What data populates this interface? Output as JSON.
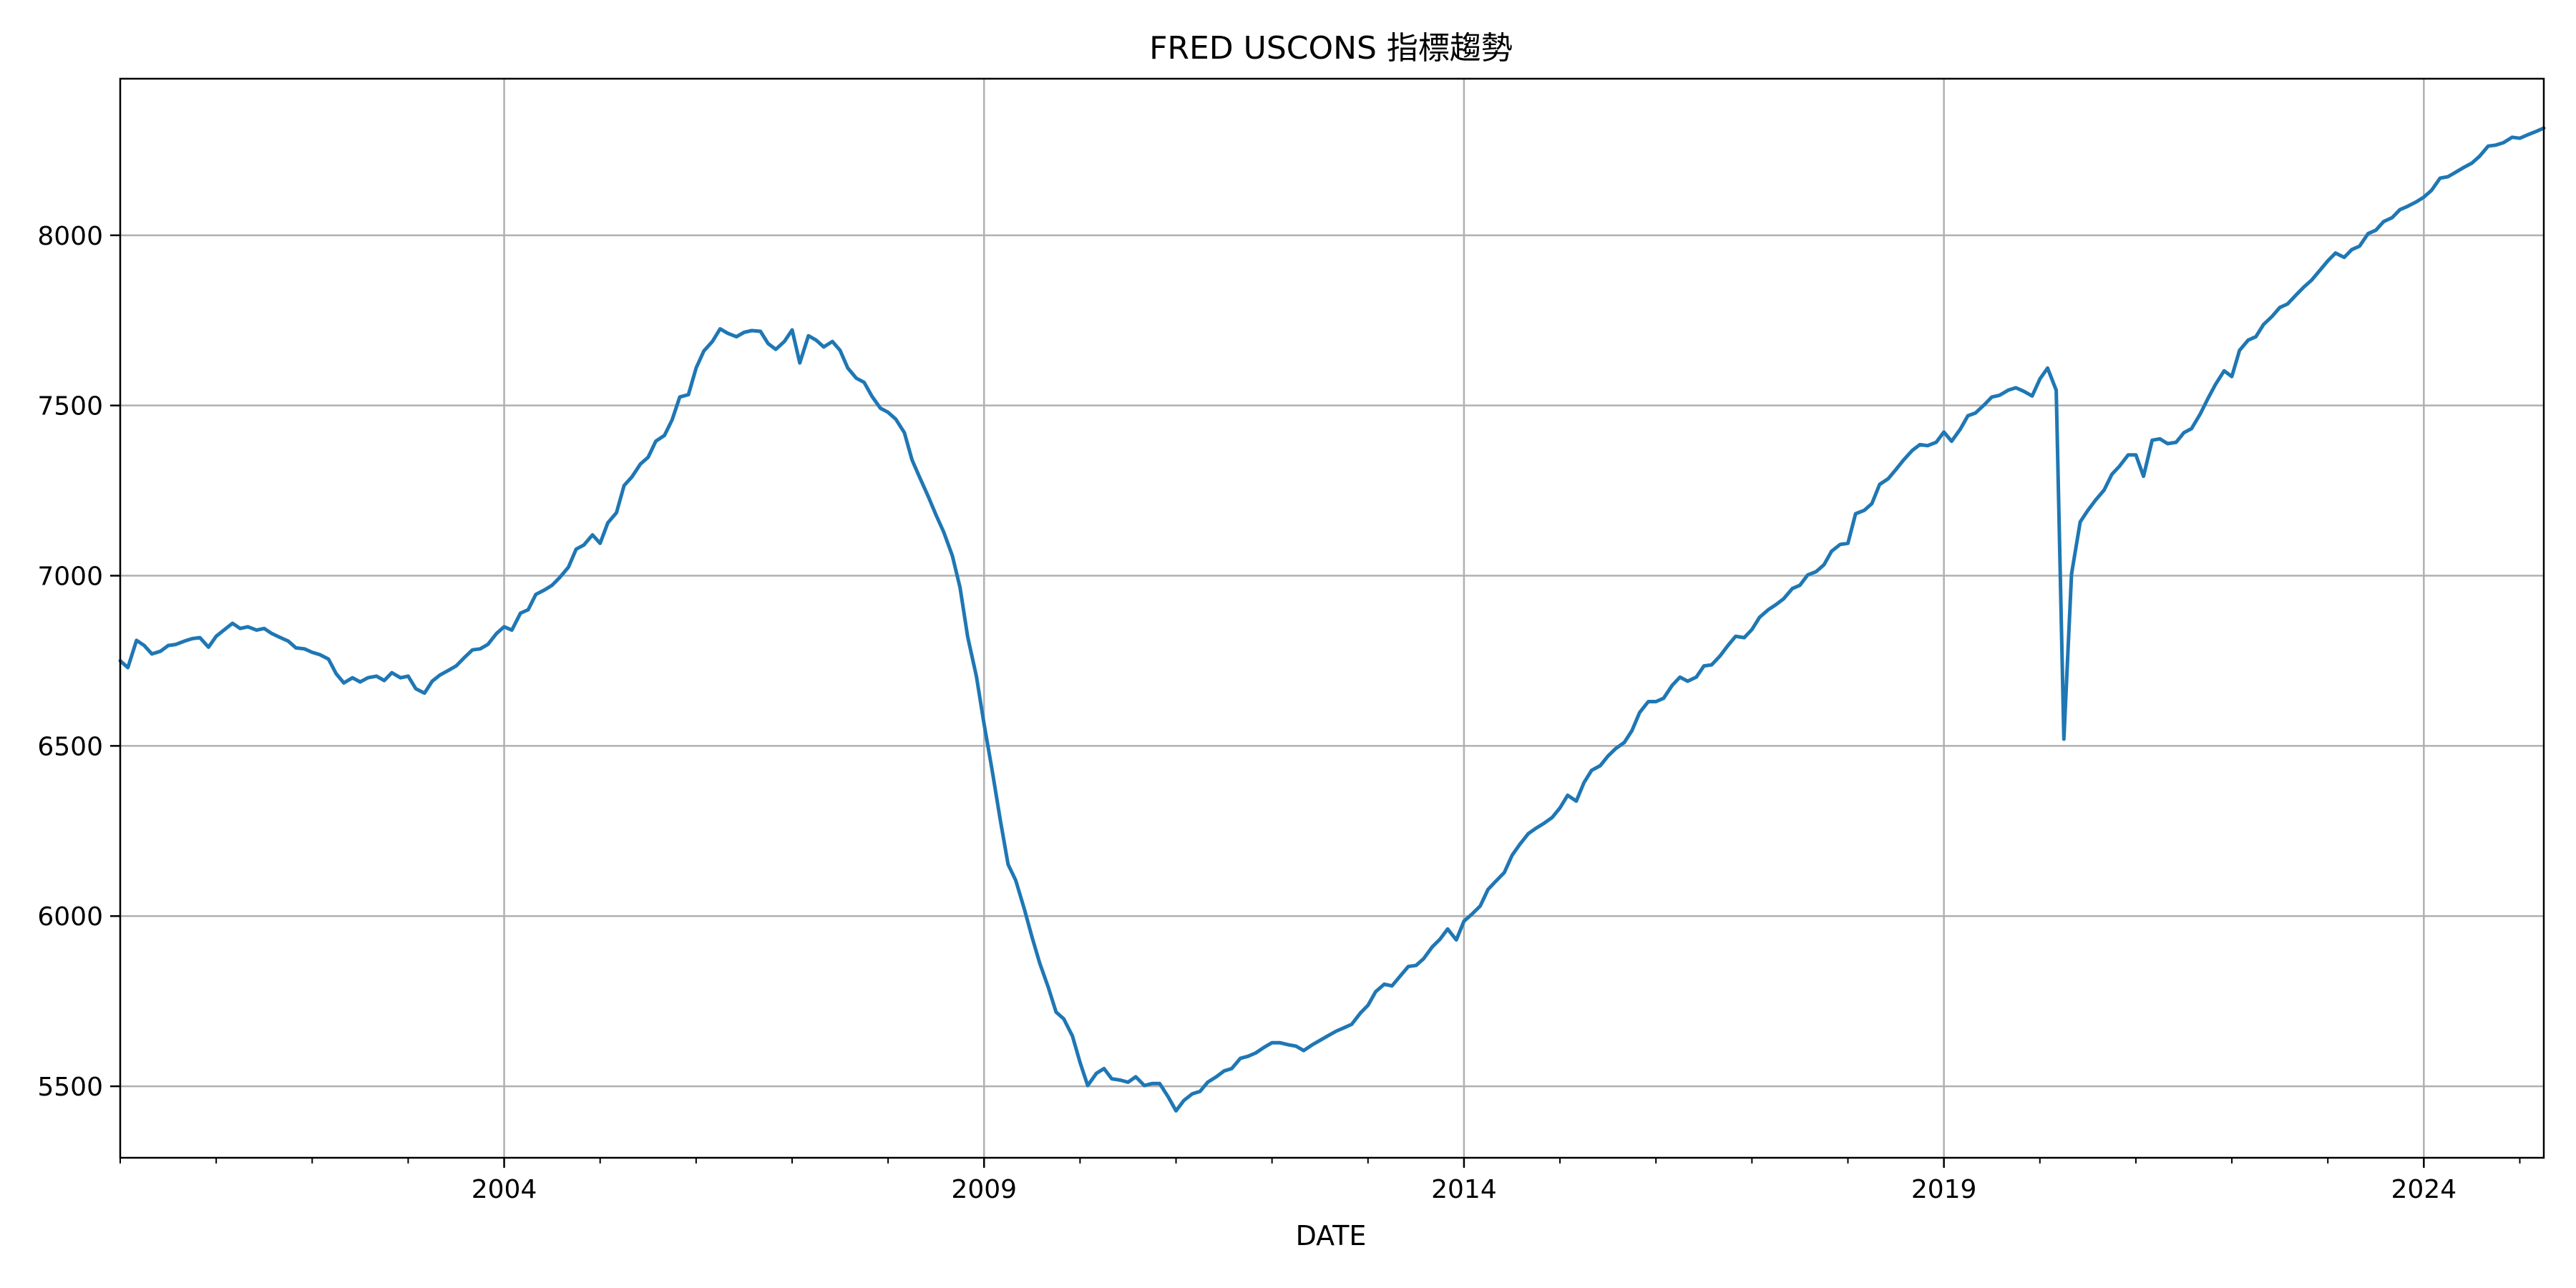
{
  "colors": {
    "line": "#1f77b4",
    "grid": "#b0b0b0",
    "axis": "#000000",
    "background": "#ffffff"
  },
  "chart_data": {
    "type": "line",
    "title": "FRED USCONS 指標趨勢",
    "xlabel": "DATE",
    "ylabel": "",
    "grid": true,
    "legend": "none",
    "xlim": [
      2000.0,
      2025.25
    ],
    "ylim": [
      5290,
      8460
    ],
    "x_ticks": [
      {
        "value": 2004,
        "label": "2004"
      },
      {
        "value": 2009,
        "label": "2009"
      },
      {
        "value": 2014,
        "label": "2014"
      },
      {
        "value": 2019,
        "label": "2019"
      },
      {
        "value": 2024,
        "label": "2024"
      }
    ],
    "y_ticks": [
      {
        "value": 5500,
        "label": "5500"
      },
      {
        "value": 6000,
        "label": "6000"
      },
      {
        "value": 6500,
        "label": "6500"
      },
      {
        "value": 7000,
        "label": "7000"
      },
      {
        "value": 7500,
        "label": "7500"
      },
      {
        "value": 8000,
        "label": "8000"
      }
    ],
    "series": [
      {
        "x": [
          2000.0,
          2000.08,
          2000.17,
          2000.25,
          2000.33,
          2000.42,
          2000.5,
          2000.58,
          2000.67,
          2000.75,
          2000.83,
          2000.92,
          2001.0,
          2001.08,
          2001.17,
          2001.25,
          2001.33,
          2001.42,
          2001.5,
          2001.58,
          2001.67,
          2001.75,
          2001.83,
          2001.92,
          2002.0,
          2002.08,
          2002.17,
          2002.25,
          2002.33,
          2002.42,
          2002.5,
          2002.58,
          2002.67,
          2002.75,
          2002.83,
          2002.92,
          2003.0,
          2003.08,
          2003.17,
          2003.25,
          2003.33,
          2003.42,
          2003.5,
          2003.58,
          2003.67,
          2003.75,
          2003.83,
          2003.92,
          2004.0,
          2004.08,
          2004.17,
          2004.25,
          2004.33,
          2004.42,
          2004.5,
          2004.58,
          2004.67,
          2004.75,
          2004.83,
          2004.92,
          2005.0,
          2005.08,
          2005.17,
          2005.25,
          2005.33,
          2005.42,
          2005.5,
          2005.58,
          2005.67,
          2005.75,
          2005.83,
          2005.92,
          2006.0,
          2006.08,
          2006.17,
          2006.25,
          2006.33,
          2006.42,
          2006.5,
          2006.58,
          2006.67,
          2006.75,
          2006.83,
          2006.92,
          2007.0,
          2007.08,
          2007.17,
          2007.25,
          2007.33,
          2007.42,
          2007.5,
          2007.58,
          2007.67,
          2007.75,
          2007.83,
          2007.92,
          2008.0,
          2008.08,
          2008.17,
          2008.25,
          2008.33,
          2008.42,
          2008.5,
          2008.58,
          2008.67,
          2008.75,
          2008.83,
          2008.92,
          2009.0,
          2009.08,
          2009.17,
          2009.25,
          2009.33,
          2009.42,
          2009.5,
          2009.58,
          2009.67,
          2009.75,
          2009.83,
          2009.92,
          2010.0,
          2010.08,
          2010.17,
          2010.25,
          2010.33,
          2010.42,
          2010.5,
          2010.58,
          2010.67,
          2010.75,
          2010.83,
          2010.92,
          2011.0,
          2011.08,
          2011.17,
          2011.25,
          2011.33,
          2011.42,
          2011.5,
          2011.58,
          2011.67,
          2011.75,
          2011.83,
          2011.92,
          2012.0,
          2012.08,
          2012.17,
          2012.25,
          2012.33,
          2012.42,
          2012.5,
          2012.58,
          2012.67,
          2012.75,
          2012.83,
          2012.92,
          2013.0,
          2013.08,
          2013.17,
          2013.25,
          2013.33,
          2013.42,
          2013.5,
          2013.58,
          2013.67,
          2013.75,
          2013.83,
          2013.92,
          2014.0,
          2014.08,
          2014.17,
          2014.25,
          2014.33,
          2014.42,
          2014.5,
          2014.58,
          2014.67,
          2014.75,
          2014.83,
          2014.92,
          2015.0,
          2015.08,
          2015.17,
          2015.25,
          2015.33,
          2015.42,
          2015.5,
          2015.58,
          2015.67,
          2015.75,
          2015.83,
          2015.92,
          2016.0,
          2016.08,
          2016.17,
          2016.25,
          2016.33,
          2016.42,
          2016.5,
          2016.58,
          2016.67,
          2016.75,
          2016.83,
          2016.92,
          2017.0,
          2017.08,
          2017.17,
          2017.25,
          2017.33,
          2017.42,
          2017.5,
          2017.58,
          2017.67,
          2017.75,
          2017.83,
          2017.92,
          2018.0,
          2018.08,
          2018.17,
          2018.25,
          2018.33,
          2018.42,
          2018.5,
          2018.58,
          2018.67,
          2018.75,
          2018.83,
          2018.92,
          2019.0,
          2019.08,
          2019.17,
          2019.25,
          2019.33,
          2019.42,
          2019.5,
          2019.58,
          2019.67,
          2019.75,
          2019.83,
          2019.92,
          2020.0,
          2020.08,
          2020.17,
          2020.25,
          2020.33,
          2020.42,
          2020.5,
          2020.58,
          2020.67,
          2020.75,
          2020.83,
          2020.92,
          2021.0,
          2021.08,
          2021.17,
          2021.25,
          2021.33,
          2021.42,
          2021.5,
          2021.58,
          2021.67,
          2021.75,
          2021.83,
          2021.92,
          2022.0,
          2022.08,
          2022.17,
          2022.25,
          2022.33,
          2022.42,
          2022.5,
          2022.58,
          2022.67,
          2022.75,
          2022.83,
          2022.92,
          2023.0,
          2023.08,
          2023.17,
          2023.25,
          2023.33,
          2023.42,
          2023.5,
          2023.58,
          2023.67,
          2023.75,
          2023.83,
          2023.92,
          2024.0,
          2024.08,
          2024.17,
          2024.25,
          2024.33,
          2024.42,
          2024.5,
          2024.58,
          2024.67,
          2024.75,
          2024.83,
          2024.92,
          2025.0,
          2025.08,
          2025.17,
          2025.25
        ],
        "y": [
          6750,
          6730,
          6810,
          6795,
          6770,
          6778,
          6795,
          6798,
          6808,
          6815,
          6818,
          6790,
          6822,
          6840,
          6860,
          6845,
          6850,
          6840,
          6845,
          6830,
          6818,
          6808,
          6788,
          6785,
          6775,
          6768,
          6755,
          6712,
          6685,
          6700,
          6688,
          6700,
          6705,
          6692,
          6715,
          6700,
          6705,
          6668,
          6655,
          6690,
          6708,
          6722,
          6735,
          6758,
          6782,
          6785,
          6798,
          6830,
          6850,
          6840,
          6890,
          6900,
          6945,
          6958,
          6972,
          6995,
          7025,
          7078,
          7090,
          7120,
          7095,
          7155,
          7185,
          7265,
          7290,
          7328,
          7348,
          7395,
          7412,
          7458,
          7525,
          7532,
          7610,
          7660,
          7688,
          7725,
          7712,
          7702,
          7715,
          7720,
          7718,
          7682,
          7665,
          7688,
          7722,
          7625,
          7705,
          7692,
          7672,
          7688,
          7662,
          7610,
          7580,
          7568,
          7528,
          7492,
          7480,
          7460,
          7420,
          7340,
          7288,
          7232,
          7178,
          7128,
          7058,
          6965,
          6820,
          6705,
          6565,
          6435,
          6280,
          6152,
          6105,
          6020,
          5938,
          5862,
          5790,
          5718,
          5698,
          5648,
          5570,
          5502,
          5538,
          5552,
          5522,
          5518,
          5512,
          5528,
          5502,
          5508,
          5508,
          5468,
          5428,
          5458,
          5478,
          5485,
          5512,
          5528,
          5545,
          5552,
          5582,
          5588,
          5598,
          5615,
          5628,
          5628,
          5622,
          5618,
          5605,
          5622,
          5635,
          5648,
          5662,
          5672,
          5682,
          5715,
          5738,
          5778,
          5800,
          5795,
          5822,
          5852,
          5855,
          5875,
          5910,
          5932,
          5962,
          5930,
          5985,
          6005,
          6030,
          6078,
          6102,
          6128,
          6178,
          6210,
          6242,
          6258,
          6272,
          6290,
          6318,
          6355,
          6338,
          6392,
          6428,
          6442,
          6470,
          6492,
          6510,
          6545,
          6598,
          6630,
          6630,
          6640,
          6678,
          6702,
          6690,
          6702,
          6735,
          6738,
          6765,
          6795,
          6822,
          6818,
          6842,
          6878,
          6900,
          6915,
          6932,
          6962,
          6972,
          7002,
          7012,
          7032,
          7072,
          7092,
          7095,
          7182,
          7192,
          7212,
          7268,
          7285,
          7312,
          7340,
          7368,
          7385,
          7382,
          7392,
          7422,
          7395,
          7430,
          7470,
          7478,
          7502,
          7525,
          7530,
          7545,
          7552,
          7542,
          7528,
          7578,
          7610,
          7545,
          6520,
          7005,
          7158,
          7192,
          7222,
          7252,
          7298,
          7322,
          7355,
          7355,
          7292,
          7398,
          7402,
          7388,
          7392,
          7420,
          7432,
          7475,
          7520,
          7562,
          7602,
          7585,
          7662,
          7692,
          7702,
          7738,
          7762,
          7788,
          7798,
          7825,
          7848,
          7868,
          7898,
          7925,
          7948,
          7935,
          7958,
          7968,
          8005,
          8015,
          8040,
          8052,
          8075,
          8085,
          8098,
          8112,
          8132,
          8168,
          8172,
          8185,
          8200,
          8212,
          8232,
          8262,
          8265,
          8272,
          8288,
          8285,
          8295,
          8305,
          8315
        ]
      }
    ]
  }
}
